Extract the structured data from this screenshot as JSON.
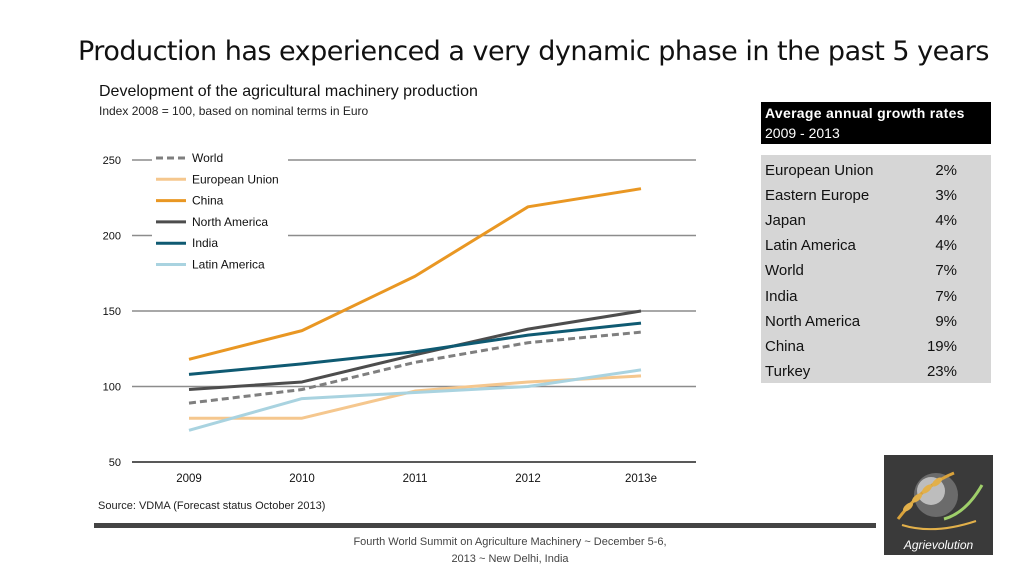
{
  "page": {
    "title": "Production has experienced a very dynamic phase in the past 5 years",
    "subtitle": "Development of the agricultural machinery production",
    "subnote": "Index 2008 = 100, based on nominal terms in Euro",
    "source": "Source: VDMA (Forecast status October 2013)",
    "footer": "Fourth World Summit on Agriculture Machinery ~ December 5-6, 2013 ~ New Delhi, India"
  },
  "growth": {
    "title": "Average annual growth rates",
    "period": "2009 - 2013",
    "rows": [
      {
        "name": "European Union",
        "value": "2%"
      },
      {
        "name": "Eastern Europe",
        "value": "3%"
      },
      {
        "name": "Japan",
        "value": "4%"
      },
      {
        "name": "Latin America",
        "value": "4%"
      },
      {
        "name": "World",
        "value": "7%"
      },
      {
        "name": "India",
        "value": "7%"
      },
      {
        "name": "North America",
        "value": "9%"
      },
      {
        "name": "China",
        "value": "19%"
      },
      {
        "name": "Turkey",
        "value": "23%"
      }
    ]
  },
  "logo": {
    "text": "Agrievolution"
  },
  "chart_data": {
    "type": "line",
    "title": "Development of the agricultural machinery production",
    "x": [
      "2009",
      "2010",
      "2011",
      "2012",
      "2013e"
    ],
    "ylim": [
      50,
      250
    ],
    "yticks": [
      50,
      100,
      150,
      200,
      250
    ],
    "grid": true,
    "legend": "top-left",
    "series": [
      {
        "name": "World",
        "color": "#7f7f7f",
        "dashed": true,
        "values": [
          89,
          98,
          116,
          129,
          136
        ]
      },
      {
        "name": "European Union",
        "color": "#f5c78e",
        "dashed": false,
        "values": [
          79,
          79,
          97,
          103,
          107
        ]
      },
      {
        "name": "China",
        "color": "#e99723",
        "dashed": false,
        "values": [
          118,
          137,
          173,
          219,
          231
        ]
      },
      {
        "name": "North America",
        "color": "#4d4d4d",
        "dashed": false,
        "values": [
          98,
          103,
          121,
          138,
          150
        ]
      },
      {
        "name": "India",
        "color": "#0f5a72",
        "dashed": false,
        "values": [
          108,
          115,
          123,
          134,
          142
        ]
      },
      {
        "name": "Latin America",
        "color": "#a9d3e0",
        "dashed": false,
        "values": [
          71,
          92,
          96,
          100,
          111
        ]
      }
    ]
  }
}
